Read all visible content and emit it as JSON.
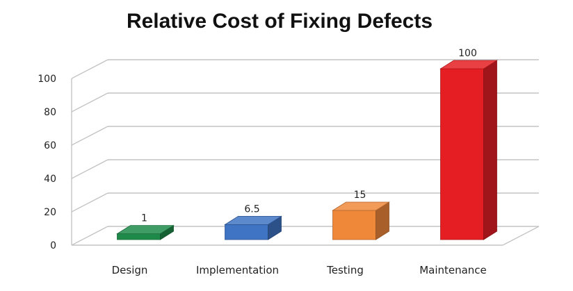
{
  "chart_data": {
    "type": "bar",
    "title": "Relative Cost of Fixing Defects",
    "xlabel": "",
    "ylabel": "",
    "categories": [
      "Design",
      "Implementation",
      "Testing",
      "Maintenance"
    ],
    "values": [
      1,
      6.5,
      15,
      100
    ],
    "data_labels": [
      "1",
      "6.5",
      "15",
      "100"
    ],
    "yticks": [
      "0",
      "20",
      "40",
      "60",
      "80",
      "100"
    ],
    "ylim": [
      0,
      100
    ],
    "grid": true,
    "style": "3d",
    "legend": "none",
    "colors": [
      "#1e8a4a",
      "#3f73c3",
      "#f0883a",
      "#e51e23"
    ]
  }
}
